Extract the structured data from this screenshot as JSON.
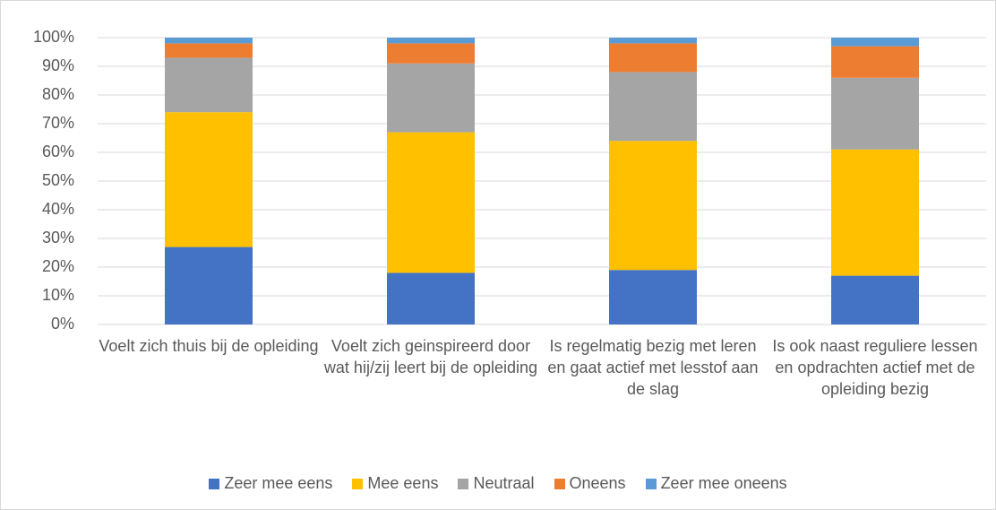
{
  "chart_data": {
    "type": "stacked_bar",
    "categories": [
      "Voelt zich thuis bij de opleiding",
      "Voelt zich geinspireerd door wat hij/zij leert bij de opleiding",
      "Is regelmatig bezig met leren en gaat actief met lesstof aan de slag",
      "Is ook naast reguliere lessen en opdrachten actief met de opleiding bezig"
    ],
    "series": [
      {
        "name": "Zeer mee eens",
        "color": "#4472c4",
        "values": [
          27,
          18,
          19,
          17
        ]
      },
      {
        "name": "Mee eens",
        "color": "#ffc000",
        "values": [
          47,
          49,
          45,
          44
        ]
      },
      {
        "name": "Neutraal",
        "color": "#a5a5a5",
        "values": [
          19,
          24,
          24,
          25
        ]
      },
      {
        "name": "Oneens",
        "color": "#ed7d31",
        "values": [
          5,
          7,
          10,
          11
        ]
      },
      {
        "name": "Zeer mee oneens",
        "color": "#5b9bd5",
        "values": [
          2,
          2,
          2,
          3
        ]
      }
    ],
    "ylim": [
      0,
      100
    ],
    "yticks": [
      {
        "value": 0,
        "label": "0%"
      },
      {
        "value": 10,
        "label": "10%"
      },
      {
        "value": 20,
        "label": "20%"
      },
      {
        "value": 30,
        "label": "30%"
      },
      {
        "value": 40,
        "label": "40%"
      },
      {
        "value": 50,
        "label": "50%"
      },
      {
        "value": 60,
        "label": "60%"
      },
      {
        "value": 70,
        "label": "70%"
      },
      {
        "value": 80,
        "label": "80%"
      },
      {
        "value": 90,
        "label": "90%"
      },
      {
        "value": 100,
        "label": "100%"
      }
    ],
    "grid": true
  }
}
